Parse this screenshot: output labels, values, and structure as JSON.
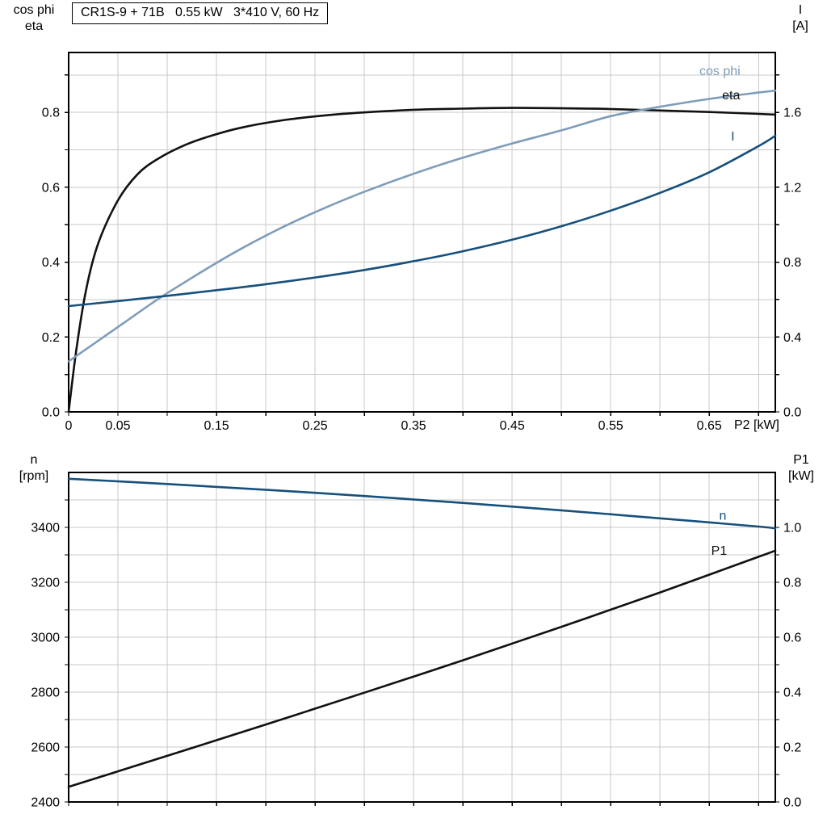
{
  "style": {
    "background": "#ffffff",
    "grid_color": "#c8c8c8",
    "axis_color": "#000000",
    "text_color": "#000000",
    "eta_p1_color": "#111111",
    "cos_phi_color": "#7f9dba",
    "i_n_color": "#16507c"
  },
  "title_box": "CR1S-9 + 71B   0.55 kW   3*410 V, 60 Hz",
  "chart_data": [
    {
      "type": "line",
      "title": "CR1S-9 + 71B   0.55 kW   3*410 V, 60 Hz",
      "x_axis": {
        "label": "P2 [kW]",
        "min": 0,
        "max": 0.717,
        "grid_step": 0.05,
        "tick_labels": [
          0,
          0.05,
          0.15,
          0.25,
          0.35,
          0.45,
          0.55,
          0.65
        ],
        "show_tick_labels": true
      },
      "left_axis": {
        "label": [
          "cos phi",
          "eta"
        ],
        "min": 0,
        "max": 0.96,
        "grid_step": 0.1,
        "tick_labels": [
          0,
          0.2,
          0.4,
          0.6,
          0.8
        ],
        "decimals": 1
      },
      "right_axis": {
        "label": [
          "I",
          "[A]"
        ],
        "min": 0,
        "max": 1.92,
        "tick_step": 0.2,
        "tick_labels": [
          0,
          0.4,
          0.8,
          1.2,
          1.6
        ],
        "decimals": 1
      },
      "series": [
        {
          "name": "eta",
          "axis": "left",
          "color": "#111111",
          "x": [
            0,
            0.008,
            0.018,
            0.03,
            0.05,
            0.07,
            0.09,
            0.12,
            0.15,
            0.18,
            0.22,
            0.26,
            0.3,
            0.35,
            0.4,
            0.45,
            0.5,
            0.55,
            0.6,
            0.65,
            0.7,
            0.717
          ],
          "y": [
            0,
            0.17,
            0.33,
            0.45,
            0.565,
            0.635,
            0.675,
            0.715,
            0.742,
            0.762,
            0.78,
            0.792,
            0.8,
            0.807,
            0.81,
            0.812,
            0.811,
            0.809,
            0.805,
            0.801,
            0.796,
            0.794
          ],
          "label_at": [
            0.663,
            0.835
          ]
        },
        {
          "name": "cos phi",
          "axis": "left",
          "color": "#7f9dba",
          "x": [
            0,
            0.03,
            0.06,
            0.09,
            0.12,
            0.15,
            0.18,
            0.22,
            0.26,
            0.3,
            0.35,
            0.4,
            0.45,
            0.5,
            0.55,
            0.6,
            0.65,
            0.7,
            0.717
          ],
          "y": [
            0.135,
            0.19,
            0.245,
            0.3,
            0.35,
            0.398,
            0.443,
            0.497,
            0.545,
            0.588,
            0.636,
            0.679,
            0.717,
            0.752,
            0.79,
            0.815,
            0.836,
            0.853,
            0.858
          ],
          "label_at": [
            0.64,
            0.9
          ]
        },
        {
          "name": "I",
          "axis": "right",
          "color": "#16507c",
          "x": [
            0,
            0.05,
            0.1,
            0.15,
            0.2,
            0.25,
            0.3,
            0.35,
            0.4,
            0.45,
            0.5,
            0.55,
            0.6,
            0.65,
            0.7,
            0.717
          ],
          "y": [
            0.565,
            0.592,
            0.62,
            0.65,
            0.682,
            0.718,
            0.758,
            0.805,
            0.858,
            0.92,
            0.992,
            1.075,
            1.17,
            1.28,
            1.42,
            1.475
          ],
          "label_at": [
            0.672,
            1.45
          ]
        }
      ]
    },
    {
      "type": "line",
      "title": "",
      "x_axis": {
        "label": "",
        "min": 0,
        "max": 0.717,
        "grid_step": 0.05,
        "tick_labels": [],
        "show_tick_labels": false
      },
      "left_axis": {
        "label": [
          "n",
          "[rpm]"
        ],
        "min": 2400,
        "max": 3600,
        "grid_step": 100,
        "tick_labels": [
          2400,
          2600,
          2800,
          3000,
          3200,
          3400
        ],
        "decimals": 0
      },
      "right_axis": {
        "label": [
          "P1",
          "[kW]"
        ],
        "min": 0,
        "max": 1.2,
        "tick_step": 0.1,
        "tick_labels": [
          0,
          0.2,
          0.4,
          0.6,
          0.8,
          1.0
        ],
        "decimals": 1
      },
      "series": [
        {
          "name": "n",
          "axis": "left",
          "color": "#16507c",
          "x": [
            0,
            0.1,
            0.2,
            0.3,
            0.4,
            0.5,
            0.6,
            0.7,
            0.717
          ],
          "y": [
            3577,
            3558,
            3537,
            3514,
            3489,
            3462,
            3433,
            3403,
            3396
          ],
          "label_at": [
            0.66,
            3428
          ]
        },
        {
          "name": "P1",
          "axis": "right",
          "color": "#111111",
          "x": [
            0,
            0.1,
            0.2,
            0.3,
            0.4,
            0.5,
            0.6,
            0.7,
            0.717
          ],
          "y": [
            0.055,
            0.168,
            0.282,
            0.398,
            0.516,
            0.638,
            0.763,
            0.893,
            0.915
          ],
          "label_at": [
            0.652,
            0.9
          ]
        }
      ]
    }
  ]
}
